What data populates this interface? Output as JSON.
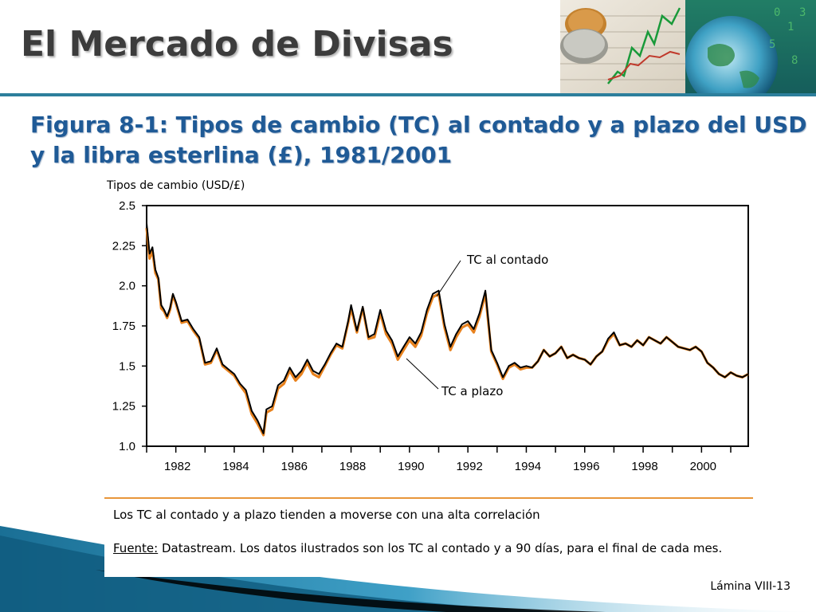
{
  "slide": {
    "title": "El Mercado de Divisas",
    "figure_title": "Figura 8-1: Tipos de cambio (TC) al contado y a plazo del USD y la libra esterlina (£), 1981/2001",
    "note": "Los TC al contado y a plazo tienden a moverse con una alta correlación",
    "source_label": "Fuente:",
    "source_text": " Datastream. Los datos ilustrados son los TC al contado y a 90 días, para el final de cada mes.",
    "slide_number": "Lámina VIII-13"
  },
  "colors": {
    "title": "#3c3c3c",
    "figure_title": "#1f5a96",
    "rule": "#2c7f9c",
    "spot": "#000000",
    "forward": "#e8821e",
    "note_rule": "#e8963a"
  },
  "icons": [
    "coins-chart-photo",
    "globe-photo"
  ],
  "chart_data": {
    "type": "line",
    "ylabel": "Tipos de cambio (USD/£)",
    "xlabel": "",
    "xlim": [
      1981,
      2001.6
    ],
    "ylim": [
      1.0,
      2.5
    ],
    "yticks": [
      "2.5",
      "2.25",
      "2.0",
      "1.75",
      "1.5",
      "1.25",
      "1.0"
    ],
    "xticks": [
      "1982",
      "1984",
      "1986",
      "1988",
      "1990",
      "1992",
      "1994",
      "1996",
      "1998",
      "2000"
    ],
    "annotations": [
      "TC al contado",
      "TC a plazo"
    ],
    "x": [
      1981.0,
      1981.1,
      1981.2,
      1981.3,
      1981.4,
      1981.5,
      1981.6,
      1981.7,
      1981.8,
      1981.9,
      1982.0,
      1982.2,
      1982.4,
      1982.6,
      1982.8,
      1983.0,
      1983.2,
      1983.4,
      1983.6,
      1983.8,
      1984.0,
      1984.2,
      1984.4,
      1984.6,
      1984.8,
      1985.0,
      1985.1,
      1985.3,
      1985.5,
      1985.7,
      1985.9,
      1986.1,
      1986.3,
      1986.5,
      1986.7,
      1986.9,
      1987.1,
      1987.3,
      1987.5,
      1987.7,
      1987.9,
      1988.0,
      1988.2,
      1988.4,
      1988.6,
      1988.8,
      1989.0,
      1989.2,
      1989.4,
      1989.6,
      1989.8,
      1990.0,
      1990.2,
      1990.4,
      1990.6,
      1990.8,
      1991.0,
      1991.2,
      1991.4,
      1991.6,
      1991.8,
      1992.0,
      1992.2,
      1992.4,
      1992.6,
      1992.8,
      1993.0,
      1993.2,
      1993.4,
      1993.6,
      1993.8,
      1994.0,
      1994.2,
      1994.4,
      1994.6,
      1994.8,
      1995.0,
      1995.2,
      1995.4,
      1995.6,
      1995.8,
      1996.0,
      1996.2,
      1996.4,
      1996.6,
      1996.8,
      1997.0,
      1997.2,
      1997.4,
      1997.6,
      1997.8,
      1998.0,
      1998.2,
      1998.4,
      1998.6,
      1998.8,
      1999.0,
      1999.2,
      1999.4,
      1999.6,
      1999.8,
      2000.0,
      2000.2,
      2000.4,
      2000.6,
      2000.8,
      2001.0,
      2001.2,
      2001.4,
      2001.6
    ],
    "series": [
      {
        "name": "TC al contado",
        "values": [
          2.39,
          2.2,
          2.24,
          2.1,
          2.05,
          1.88,
          1.85,
          1.81,
          1.86,
          1.95,
          1.9,
          1.78,
          1.79,
          1.73,
          1.68,
          1.52,
          1.53,
          1.61,
          1.51,
          1.48,
          1.45,
          1.39,
          1.35,
          1.22,
          1.16,
          1.08,
          1.23,
          1.25,
          1.38,
          1.41,
          1.49,
          1.43,
          1.47,
          1.54,
          1.47,
          1.45,
          1.51,
          1.58,
          1.64,
          1.62,
          1.78,
          1.88,
          1.72,
          1.87,
          1.68,
          1.7,
          1.85,
          1.72,
          1.66,
          1.56,
          1.62,
          1.68,
          1.64,
          1.71,
          1.85,
          1.95,
          1.97,
          1.76,
          1.62,
          1.7,
          1.76,
          1.78,
          1.73,
          1.83,
          1.97,
          1.6,
          1.52,
          1.43,
          1.5,
          1.52,
          1.49,
          1.5,
          1.49,
          1.53,
          1.6,
          1.56,
          1.58,
          1.62,
          1.55,
          1.57,
          1.55,
          1.54,
          1.51,
          1.56,
          1.59,
          1.67,
          1.71,
          1.63,
          1.64,
          1.62,
          1.66,
          1.63,
          1.68,
          1.66,
          1.64,
          1.68,
          1.65,
          1.62,
          1.61,
          1.6,
          1.62,
          1.59,
          1.52,
          1.49,
          1.45,
          1.43,
          1.46,
          1.44,
          1.43,
          1.45
        ]
      },
      {
        "name": "TC a plazo",
        "values": [
          2.36,
          2.17,
          2.22,
          2.08,
          2.04,
          1.86,
          1.84,
          1.8,
          1.85,
          1.94,
          1.89,
          1.77,
          1.78,
          1.72,
          1.67,
          1.51,
          1.52,
          1.6,
          1.5,
          1.47,
          1.44,
          1.38,
          1.33,
          1.2,
          1.14,
          1.07,
          1.21,
          1.23,
          1.36,
          1.39,
          1.47,
          1.41,
          1.45,
          1.52,
          1.45,
          1.43,
          1.5,
          1.57,
          1.63,
          1.61,
          1.77,
          1.86,
          1.71,
          1.86,
          1.67,
          1.68,
          1.83,
          1.7,
          1.64,
          1.54,
          1.6,
          1.66,
          1.62,
          1.69,
          1.83,
          1.93,
          1.95,
          1.74,
          1.6,
          1.68,
          1.74,
          1.76,
          1.71,
          1.81,
          1.95,
          1.59,
          1.51,
          1.42,
          1.49,
          1.51,
          1.48,
          1.49,
          1.49,
          1.53,
          1.6,
          1.56,
          1.58,
          1.62,
          1.55,
          1.57,
          1.55,
          1.54,
          1.51,
          1.56,
          1.59,
          1.66,
          1.7,
          1.63,
          1.64,
          1.62,
          1.66,
          1.63,
          1.68,
          1.66,
          1.64,
          1.68,
          1.65,
          1.62,
          1.61,
          1.6,
          1.62,
          1.59,
          1.52,
          1.49,
          1.45,
          1.43,
          1.46,
          1.44,
          1.43,
          1.45
        ]
      }
    ]
  }
}
